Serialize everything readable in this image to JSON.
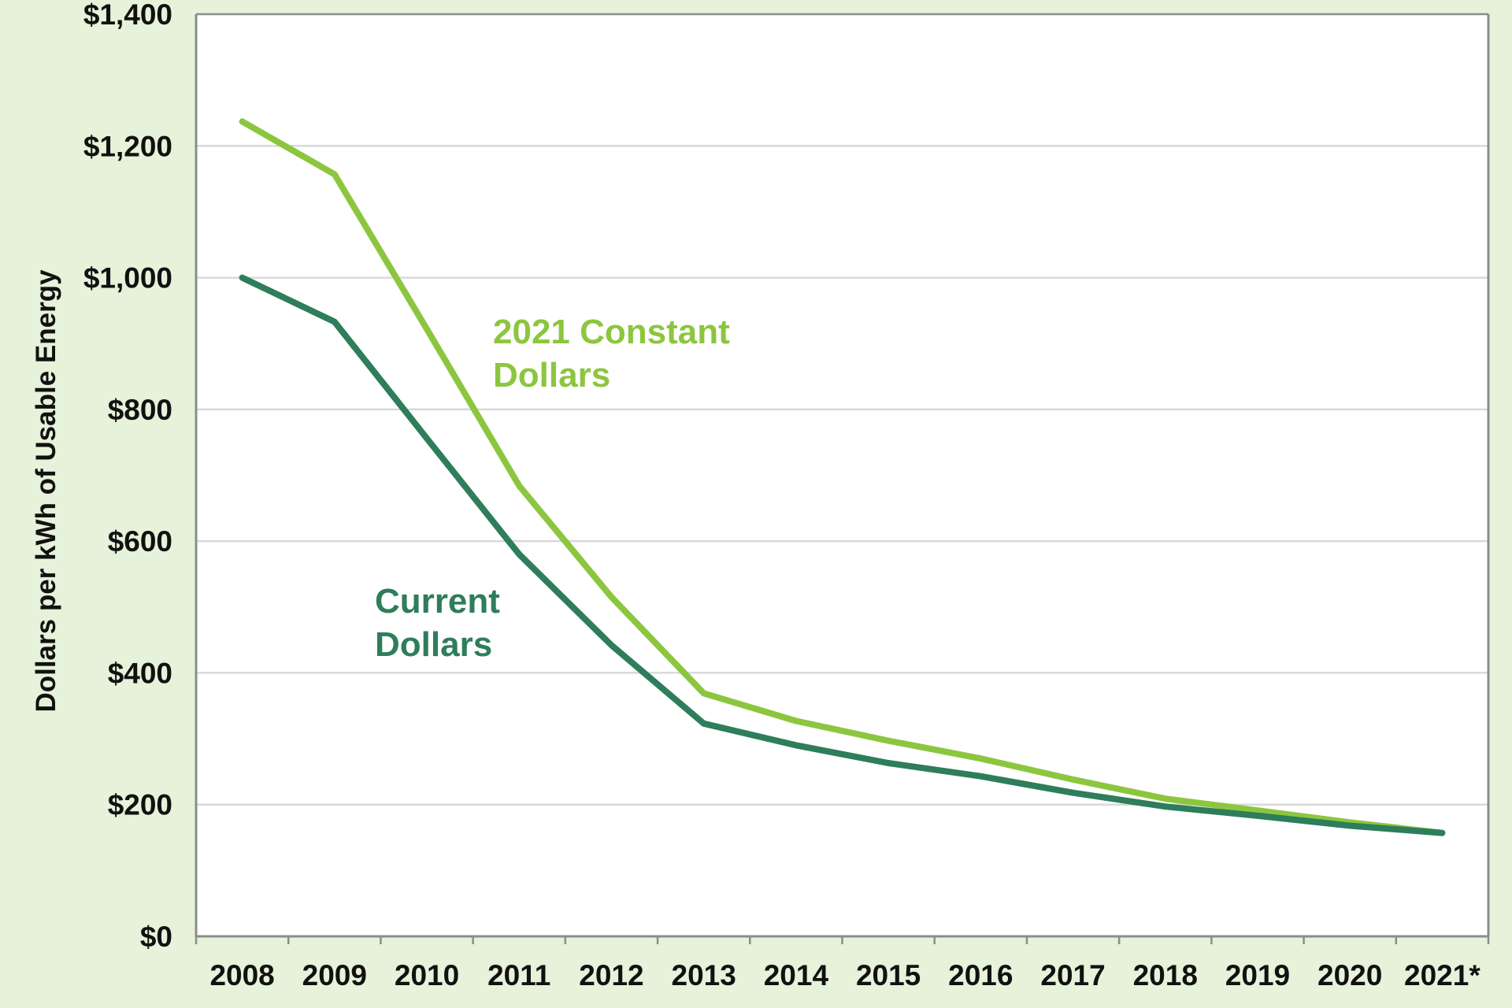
{
  "chart_data": {
    "type": "line",
    "title": "",
    "xlabel": "",
    "ylabel": "Dollars per kWh of Usable Energy",
    "categories": [
      "2008",
      "2009",
      "2010",
      "2011",
      "2012",
      "2013",
      "2014",
      "2015",
      "2016",
      "2017",
      "2018",
      "2019",
      "2020",
      "2021*"
    ],
    "ylim": [
      0,
      1400
    ],
    "yticks": [
      0,
      200,
      400,
      600,
      800,
      1000,
      1200,
      1400
    ],
    "ytick_labels": [
      "$0",
      "$200",
      "$400",
      "$600",
      "$800",
      "$1,000",
      "$1,200",
      "$1,400"
    ],
    "grid": true,
    "legend": "inline-labels",
    "series": [
      {
        "name": "2021 Constant Dollars",
        "name_lines": [
          "2021 Constant",
          "Dollars"
        ],
        "color": "#8cc63f",
        "values": [
          1237,
          1157,
          922,
          684,
          515,
          369,
          327,
          297,
          270,
          238,
          209,
          191,
          173,
          157
        ]
      },
      {
        "name": "Current Dollars",
        "name_lines": [
          "Current",
          "Dollars"
        ],
        "color": "#2e7d5b",
        "values": [
          1000,
          933,
          756,
          580,
          442,
          323,
          290,
          263,
          243,
          218,
          197,
          183,
          168,
          157
        ]
      }
    ]
  }
}
